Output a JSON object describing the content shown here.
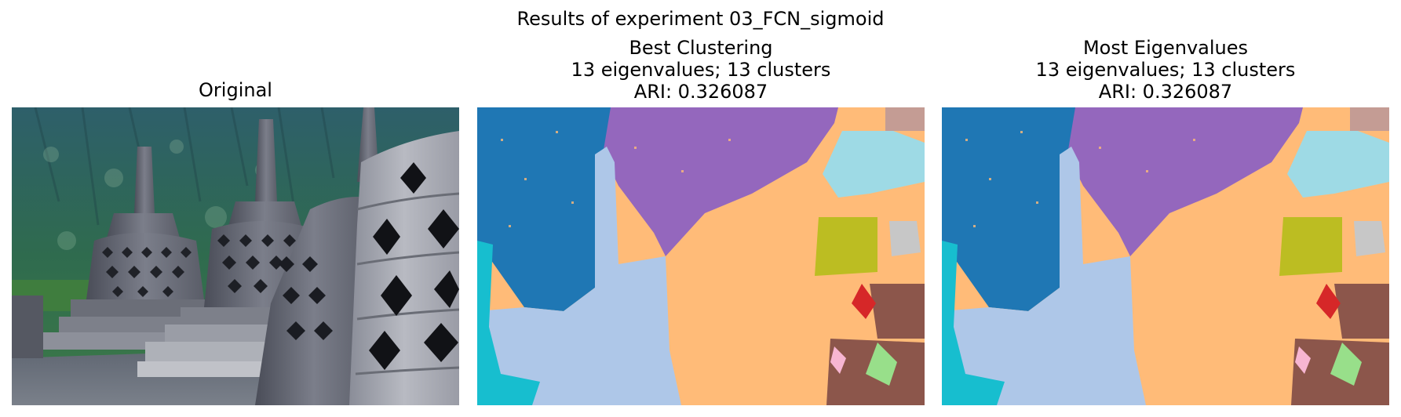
{
  "figure": {
    "suptitle": "Results of experiment 03_FCN_sigmoid"
  },
  "panels": [
    {
      "id": "original",
      "title_lines": [
        "Original"
      ],
      "image": "photo of Borobudur stone stupas with green mountains in background"
    },
    {
      "id": "best-clustering",
      "title_lines": [
        "Best Clustering",
        "13 eigenvalues; 13 clusters",
        "ARI: 0.326087"
      ],
      "image": "segmentation map with 13 colored clusters"
    },
    {
      "id": "most-eigenvalues",
      "title_lines": [
        "Most Eigenvalues",
        "13 eigenvalues; 13 clusters",
        "ARI: 0.326087"
      ],
      "image": "segmentation map with 13 colored clusters"
    }
  ],
  "cluster_colors": [
    "#1f77b4",
    "#9467bd",
    "#ffbb78",
    "#aec7e8",
    "#17becf",
    "#9edae5",
    "#bcbd22",
    "#c7c7c7",
    "#8c564b",
    "#d62728",
    "#98df8a",
    "#f7b6d2",
    "#c49c94"
  ]
}
